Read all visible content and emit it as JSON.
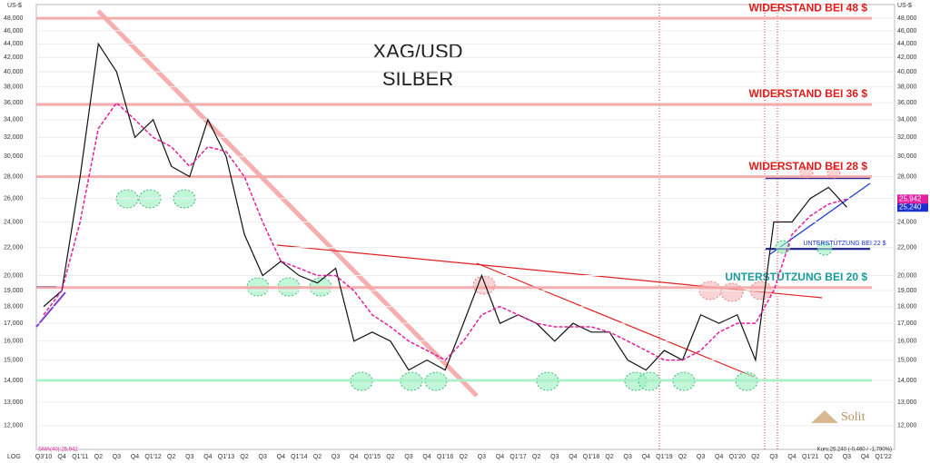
{
  "chart_data": {
    "type": "line",
    "title": "XAG/USD",
    "subtitle": "SILBER",
    "y_axis_label": "US-$",
    "scale_label": "LOG",
    "log_scale": true,
    "grid": true,
    "categories": [
      "Q3'10",
      "Q4",
      "Q1'11",
      "Q2",
      "Q3",
      "Q4",
      "Q1'12",
      "Q2",
      "Q3",
      "Q4",
      "Q1'13",
      "Q2",
      "Q3",
      "Q4",
      "Q1'14",
      "Q2",
      "Q3",
      "Q4",
      "Q1'15",
      "Q2",
      "Q3",
      "Q4",
      "Q1'16",
      "Q2",
      "Q3",
      "Q4",
      "Q1'17",
      "Q2",
      "Q3",
      "Q4",
      "Q1'18",
      "Q2",
      "Q3",
      "Q4",
      "Q1'19",
      "Q2",
      "Q3",
      "Q4",
      "Q1'20",
      "Q2",
      "Q3",
      "Q4",
      "Q1'21",
      "Q2",
      "Q3",
      "Q4",
      "Q1'22"
    ],
    "series": [
      {
        "color": "#111111",
        "values": [
          18,
          19,
          28,
          44,
          40,
          32,
          34,
          29,
          28,
          34,
          30,
          23,
          20,
          21,
          20,
          19.5,
          20.5,
          16,
          16.5,
          16,
          14.5,
          15,
          14.5,
          17,
          20,
          17,
          17.5,
          17,
          16,
          17,
          16.5,
          16.5,
          15,
          14.5,
          15.5,
          15,
          17.5,
          17,
          17.5,
          15,
          24,
          24,
          26,
          27,
          25.24,
          null,
          null
        ],
        "value_labels": [
          null,
          null,
          null,
          null,
          null,
          null,
          null,
          null,
          null,
          null,
          null,
          null,
          null,
          null,
          null,
          null,
          null,
          null,
          null,
          null,
          null,
          null,
          null,
          null,
          null,
          null,
          null,
          null,
          null,
          null,
          null,
          null,
          null,
          null,
          null,
          null,
          null,
          null,
          null,
          null,
          null,
          null,
          null,
          null,
          "25,240",
          null,
          null
        ],
        "label_color": "#1a2fd0"
      },
      {
        "color": "#e0209f",
        "dashed": true,
        "values": [
          17.5,
          19,
          24,
          33,
          36,
          34,
          32,
          31,
          29,
          31,
          30.5,
          28,
          24,
          21,
          20.5,
          20,
          20,
          19,
          17.5,
          16.8,
          16,
          15.5,
          15,
          16,
          17.5,
          18,
          17.5,
          17,
          16.8,
          16.8,
          16.8,
          16.5,
          16,
          15.5,
          15,
          15,
          15.5,
          16.5,
          17,
          17,
          19,
          23,
          24.5,
          25.5,
          25.942,
          null,
          null
        ],
        "value_labels": [
          null,
          null,
          null,
          null,
          null,
          null,
          null,
          null,
          null,
          null,
          null,
          null,
          null,
          null,
          null,
          null,
          null,
          null,
          null,
          null,
          null,
          null,
          null,
          null,
          null,
          null,
          null,
          null,
          null,
          null,
          null,
          null,
          null,
          null,
          null,
          null,
          null,
          null,
          null,
          null,
          null,
          null,
          null,
          null,
          "25,942",
          null,
          null
        ],
        "label_color": "#e0209f"
      }
    ],
    "indicator_label": "SMA(40):25,942",
    "quote_label": "Kurs:25,240 (-0,460 / -1,790%)",
    "brand": "Solit",
    "levels": [
      {
        "value": 48,
        "label": "WIDERSTAND BEI 48 $",
        "color": "#f4a6a6",
        "label_color": "#e21b1b"
      },
      {
        "value": 35.8,
        "label": "WIDERSTAND BEI 36 $",
        "color": "#f4a6a6",
        "label_color": "#e21b1b"
      },
      {
        "value": 28,
        "label": "WIDERSTAND BEI 28 $",
        "color": "#f4a6a6",
        "label_color": "#e21b1b"
      },
      {
        "value": 19.2,
        "label": "UNTERSTÜTZUNG BEI 20 $",
        "color": "#f4a6a6",
        "label_color": "#1a9b9b"
      },
      {
        "value": 14,
        "color": "#a8f0c8"
      }
    ],
    "side_note": "UNTERSTÜTZUNG BEI 22 $",
    "ylim": [
      11.07,
      50.3
    ],
    "yticks": [
      {
        "value": 12,
        "label": "12,000"
      },
      {
        "value": 13,
        "label": "13,000"
      },
      {
        "value": 14,
        "label": "14,000"
      },
      {
        "value": 15,
        "label": "15,000"
      },
      {
        "value": 16,
        "label": "16,000"
      },
      {
        "value": 17,
        "label": "17,000"
      },
      {
        "value": 18,
        "label": "18,000"
      },
      {
        "value": 19,
        "label": "19,000"
      },
      {
        "value": 20,
        "label": "20,000"
      },
      {
        "value": 22,
        "label": "22,000"
      },
      {
        "value": 24,
        "label": "24,000"
      },
      {
        "value": 26,
        "label": "26,000"
      },
      {
        "value": 28,
        "label": "28,000"
      },
      {
        "value": 30,
        "label": "30,000"
      },
      {
        "value": 32,
        "label": "32,000"
      },
      {
        "value": 34,
        "label": "34,000"
      },
      {
        "value": 36,
        "label": "36,000"
      },
      {
        "value": 38,
        "label": "38,000"
      },
      {
        "value": 40,
        "label": "40,000"
      },
      {
        "value": 42,
        "label": "42,000"
      },
      {
        "value": 44,
        "label": "44,000"
      },
      {
        "value": 46,
        "label": "46,000"
      },
      {
        "value": 48,
        "label": "48,000"
      }
    ]
  }
}
